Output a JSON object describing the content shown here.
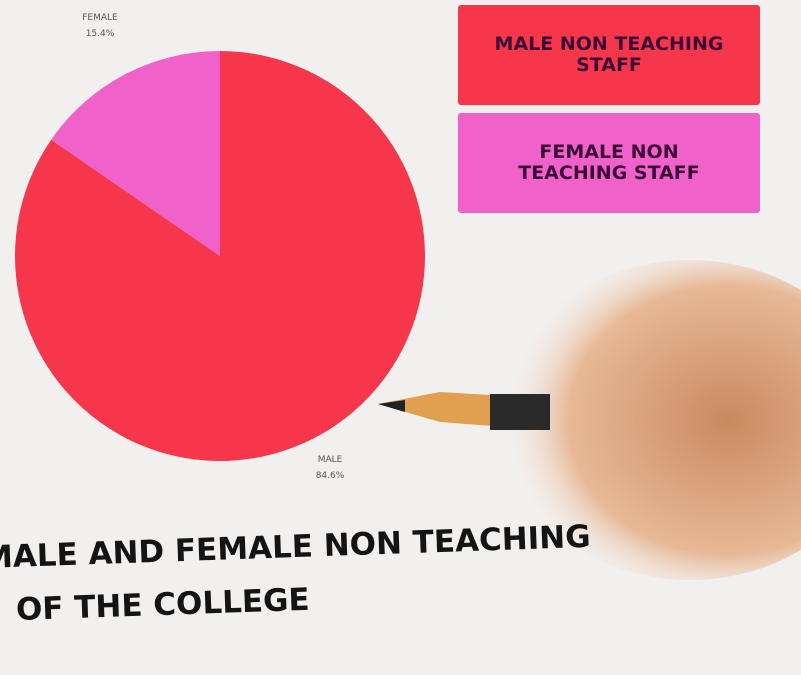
{
  "chart_data": {
    "type": "pie",
    "title": "MALE AND FEMALE NON TEACHING",
    "subtitle": "OF THE COLLEGE",
    "categories": [
      "MALE",
      "FEMALE"
    ],
    "values": [
      84.6,
      15.4
    ],
    "value_labels": [
      "84.6%",
      "15.4%"
    ],
    "colors": [
      "#f5364b",
      "#f062c9"
    ],
    "legend": [
      "MALE NON TEACHING STAFF",
      "FEMALE NON TEACHING STAFF"
    ]
  }
}
